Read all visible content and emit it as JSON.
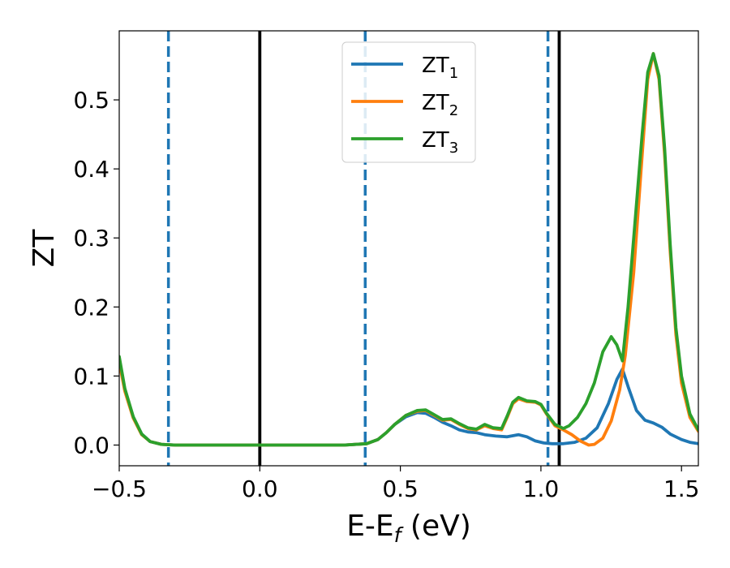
{
  "chart_data": {
    "type": "line",
    "xlabel": "E-E",
    "xlabel_sub": "f",
    "xlabel_unit": " (eV)",
    "ylabel": "ZT",
    "xlim": [
      -0.5,
      1.56
    ],
    "ylim": [
      -0.03,
      0.6
    ],
    "x_ticks": [
      -0.5,
      0.0,
      0.5,
      1.0,
      1.5
    ],
    "x_tick_labels": [
      "−0.5",
      "0.0",
      "0.5",
      "1.0",
      "1.5"
    ],
    "y_ticks": [
      0.0,
      0.1,
      0.2,
      0.3,
      0.4,
      0.5
    ],
    "y_tick_labels": [
      "0.0",
      "0.1",
      "0.2",
      "0.3",
      "0.4",
      "0.5"
    ],
    "grid": false,
    "legend_position": "top-center",
    "vertical_lines": [
      {
        "x": 0.0,
        "style": "solid",
        "color": "#000000"
      },
      {
        "x": 1.065,
        "style": "solid",
        "color": "#000000"
      },
      {
        "x": -0.325,
        "style": "dashed",
        "color": "#1f77b4"
      },
      {
        "x": 0.375,
        "style": "dashed",
        "color": "#1f77b4"
      },
      {
        "x": 1.025,
        "style": "dashed",
        "color": "#1f77b4"
      }
    ],
    "series": [
      {
        "name": "ZT",
        "sub": "1",
        "color": "#1f77b4",
        "points": [
          [
            -0.5,
            0.125
          ],
          [
            -0.48,
            0.08
          ],
          [
            -0.45,
            0.04
          ],
          [
            -0.42,
            0.016
          ],
          [
            -0.39,
            0.005
          ],
          [
            -0.35,
            0.001
          ],
          [
            -0.3,
            0.0
          ],
          [
            0.0,
            0.0
          ],
          [
            0.3,
            0.0
          ],
          [
            0.38,
            0.002
          ],
          [
            0.42,
            0.008
          ],
          [
            0.45,
            0.018
          ],
          [
            0.48,
            0.03
          ],
          [
            0.52,
            0.041
          ],
          [
            0.56,
            0.047
          ],
          [
            0.59,
            0.046
          ],
          [
            0.62,
            0.04
          ],
          [
            0.65,
            0.033
          ],
          [
            0.68,
            0.028
          ],
          [
            0.71,
            0.022
          ],
          [
            0.74,
            0.019
          ],
          [
            0.77,
            0.018
          ],
          [
            0.8,
            0.015
          ],
          [
            0.84,
            0.013
          ],
          [
            0.88,
            0.012
          ],
          [
            0.92,
            0.015
          ],
          [
            0.95,
            0.012
          ],
          [
            0.98,
            0.006
          ],
          [
            1.01,
            0.003
          ],
          [
            1.04,
            0.002
          ],
          [
            1.08,
            0.002
          ],
          [
            1.12,
            0.004
          ],
          [
            1.16,
            0.01
          ],
          [
            1.2,
            0.025
          ],
          [
            1.24,
            0.06
          ],
          [
            1.27,
            0.095
          ],
          [
            1.29,
            0.11
          ],
          [
            1.31,
            0.085
          ],
          [
            1.34,
            0.05
          ],
          [
            1.37,
            0.036
          ],
          [
            1.4,
            0.032
          ],
          [
            1.43,
            0.026
          ],
          [
            1.46,
            0.016
          ],
          [
            1.5,
            0.008
          ],
          [
            1.53,
            0.004
          ],
          [
            1.56,
            0.002
          ]
        ]
      },
      {
        "name": "ZT",
        "sub": "2",
        "color": "#ff7f0e",
        "points": [
          [
            -0.5,
            0.12
          ],
          [
            -0.48,
            0.078
          ],
          [
            -0.45,
            0.039
          ],
          [
            -0.42,
            0.015
          ],
          [
            -0.39,
            0.005
          ],
          [
            -0.35,
            0.001
          ],
          [
            -0.3,
            0.0
          ],
          [
            0.0,
            0.0
          ],
          [
            0.3,
            0.0
          ],
          [
            0.38,
            0.002
          ],
          [
            0.42,
            0.008
          ],
          [
            0.45,
            0.018
          ],
          [
            0.48,
            0.03
          ],
          [
            0.52,
            0.043
          ],
          [
            0.56,
            0.049
          ],
          [
            0.59,
            0.05
          ],
          [
            0.62,
            0.043
          ],
          [
            0.65,
            0.036
          ],
          [
            0.68,
            0.037
          ],
          [
            0.71,
            0.03
          ],
          [
            0.74,
            0.024
          ],
          [
            0.77,
            0.022
          ],
          [
            0.8,
            0.028
          ],
          [
            0.83,
            0.024
          ],
          [
            0.86,
            0.022
          ],
          [
            0.88,
            0.04
          ],
          [
            0.9,
            0.06
          ],
          [
            0.92,
            0.067
          ],
          [
            0.95,
            0.063
          ],
          [
            0.98,
            0.062
          ],
          [
            1.0,
            0.058
          ],
          [
            1.02,
            0.045
          ],
          [
            1.05,
            0.028
          ],
          [
            1.08,
            0.022
          ],
          [
            1.11,
            0.015
          ],
          [
            1.14,
            0.006
          ],
          [
            1.17,
            0.0
          ],
          [
            1.19,
            0.001
          ],
          [
            1.22,
            0.01
          ],
          [
            1.25,
            0.035
          ],
          [
            1.28,
            0.08
          ],
          [
            1.3,
            0.13
          ],
          [
            1.33,
            0.25
          ],
          [
            1.36,
            0.42
          ],
          [
            1.38,
            0.53
          ],
          [
            1.4,
            0.567
          ],
          [
            1.42,
            0.53
          ],
          [
            1.44,
            0.42
          ],
          [
            1.46,
            0.28
          ],
          [
            1.48,
            0.16
          ],
          [
            1.5,
            0.09
          ],
          [
            1.53,
            0.04
          ],
          [
            1.56,
            0.02
          ]
        ]
      },
      {
        "name": "ZT",
        "sub": "3",
        "color": "#2ca02c",
        "points": [
          [
            -0.5,
            0.128
          ],
          [
            -0.48,
            0.082
          ],
          [
            -0.45,
            0.041
          ],
          [
            -0.42,
            0.016
          ],
          [
            -0.39,
            0.005
          ],
          [
            -0.35,
            0.001
          ],
          [
            -0.3,
            0.0
          ],
          [
            0.0,
            0.0
          ],
          [
            0.3,
            0.0
          ],
          [
            0.38,
            0.002
          ],
          [
            0.42,
            0.008
          ],
          [
            0.45,
            0.018
          ],
          [
            0.48,
            0.03
          ],
          [
            0.52,
            0.043
          ],
          [
            0.56,
            0.05
          ],
          [
            0.59,
            0.051
          ],
          [
            0.62,
            0.044
          ],
          [
            0.65,
            0.037
          ],
          [
            0.68,
            0.038
          ],
          [
            0.71,
            0.031
          ],
          [
            0.74,
            0.025
          ],
          [
            0.77,
            0.023
          ],
          [
            0.8,
            0.03
          ],
          [
            0.83,
            0.025
          ],
          [
            0.86,
            0.024
          ],
          [
            0.88,
            0.042
          ],
          [
            0.9,
            0.062
          ],
          [
            0.92,
            0.069
          ],
          [
            0.95,
            0.064
          ],
          [
            0.98,
            0.063
          ],
          [
            1.0,
            0.059
          ],
          [
            1.02,
            0.046
          ],
          [
            1.05,
            0.03
          ],
          [
            1.08,
            0.024
          ],
          [
            1.1,
            0.028
          ],
          [
            1.13,
            0.04
          ],
          [
            1.16,
            0.06
          ],
          [
            1.19,
            0.09
          ],
          [
            1.22,
            0.135
          ],
          [
            1.25,
            0.157
          ],
          [
            1.27,
            0.145
          ],
          [
            1.29,
            0.122
          ],
          [
            1.31,
            0.2
          ],
          [
            1.33,
            0.3
          ],
          [
            1.36,
            0.45
          ],
          [
            1.38,
            0.54
          ],
          [
            1.4,
            0.567
          ],
          [
            1.42,
            0.535
          ],
          [
            1.44,
            0.43
          ],
          [
            1.46,
            0.29
          ],
          [
            1.48,
            0.17
          ],
          [
            1.5,
            0.1
          ],
          [
            1.53,
            0.045
          ],
          [
            1.56,
            0.022
          ]
        ]
      }
    ]
  }
}
